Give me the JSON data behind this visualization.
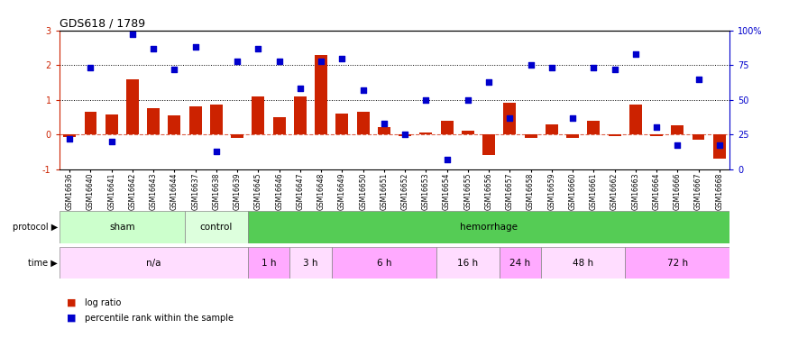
{
  "title": "GDS618 / 1789",
  "samples": [
    "GSM16636",
    "GSM16640",
    "GSM16641",
    "GSM16642",
    "GSM16643",
    "GSM16644",
    "GSM16637",
    "GSM16638",
    "GSM16639",
    "GSM16645",
    "GSM16646",
    "GSM16647",
    "GSM16648",
    "GSM16649",
    "GSM16650",
    "GSM16651",
    "GSM16652",
    "GSM16653",
    "GSM16654",
    "GSM16655",
    "GSM16656",
    "GSM16657",
    "GSM16658",
    "GSM16659",
    "GSM16660",
    "GSM16661",
    "GSM16662",
    "GSM16663",
    "GSM16664",
    "GSM16666",
    "GSM16667",
    "GSM16668"
  ],
  "log_ratio": [
    -0.08,
    0.65,
    0.58,
    1.6,
    0.75,
    0.55,
    0.8,
    0.85,
    -0.1,
    1.1,
    0.5,
    1.1,
    2.3,
    0.6,
    0.65,
    0.2,
    -0.05,
    0.05,
    0.4,
    0.1,
    -0.6,
    0.9,
    -0.1,
    0.3,
    -0.1,
    0.4,
    -0.05,
    0.85,
    -0.05,
    0.25,
    -0.15,
    -0.7
  ],
  "percentile_pct": [
    22,
    73,
    20,
    97,
    87,
    72,
    88,
    13,
    78,
    87,
    78,
    58,
    78,
    80,
    57,
    33,
    25,
    50,
    7,
    50,
    63,
    37,
    75,
    73,
    37,
    73,
    72,
    83,
    30,
    17,
    65,
    17
  ],
  "protocol_groups": [
    {
      "label": "sham",
      "start": 0,
      "end": 6,
      "color": "#ccffcc"
    },
    {
      "label": "control",
      "start": 6,
      "end": 9,
      "color": "#ddffdd"
    },
    {
      "label": "hemorrhage",
      "start": 9,
      "end": 32,
      "color": "#55cc55"
    }
  ],
  "time_groups": [
    {
      "label": "n/a",
      "start": 0,
      "end": 9,
      "color": "#ffddff"
    },
    {
      "label": "1 h",
      "start": 9,
      "end": 11,
      "color": "#ffaaff"
    },
    {
      "label": "3 h",
      "start": 11,
      "end": 13,
      "color": "#ffddff"
    },
    {
      "label": "6 h",
      "start": 13,
      "end": 18,
      "color": "#ffaaff"
    },
    {
      "label": "16 h",
      "start": 18,
      "end": 21,
      "color": "#ffddff"
    },
    {
      "label": "24 h",
      "start": 21,
      "end": 23,
      "color": "#ffaaff"
    },
    {
      "label": "48 h",
      "start": 23,
      "end": 27,
      "color": "#ffddff"
    },
    {
      "label": "72 h",
      "start": 27,
      "end": 32,
      "color": "#ffaaff"
    }
  ],
  "bar_color": "#cc2200",
  "dot_color": "#0000cc",
  "ylim_left": [
    -1,
    3
  ],
  "ylim_right": [
    0,
    100
  ],
  "yticks_left": [
    -1,
    0,
    1,
    2,
    3
  ],
  "yticks_right": [
    0,
    25,
    50,
    75,
    100
  ],
  "ytick_labels_right": [
    "0",
    "25",
    "50",
    "75",
    "100%"
  ],
  "hlines_dotted": [
    1,
    2
  ],
  "bar_width": 0.6,
  "fig_width": 8.75,
  "fig_height": 3.75
}
